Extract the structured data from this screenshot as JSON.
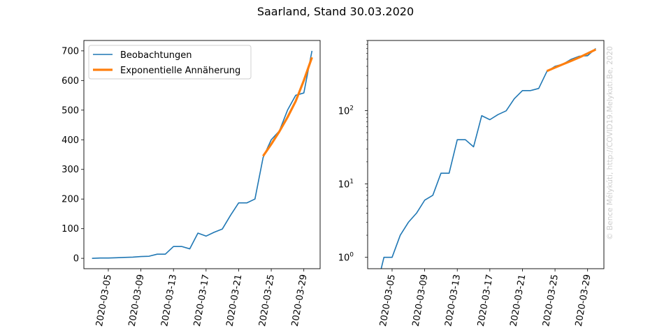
{
  "figure": {
    "title": "Saarland, Stand 30.03.2020",
    "credit": "© Bence Mélykúti, http://COVID19.Melykuti.Be, 2020"
  },
  "colors": {
    "observations": "#1f77b4",
    "fit": "#ff7f0e",
    "credit": "#cccccc"
  },
  "chart_data": [
    {
      "type": "line",
      "yscale": "linear",
      "ylim": [
        -35,
        735
      ],
      "xlim": [
        "2020-03-02",
        "2020-03-31"
      ],
      "yticks": [
        0,
        100,
        200,
        300,
        400,
        500,
        600,
        700
      ],
      "ytick_labels": [
        "0",
        "100",
        "200",
        "300",
        "400",
        "500",
        "600",
        "700"
      ],
      "xticks": [
        "2020-03-05",
        "2020-03-09",
        "2020-03-13",
        "2020-03-17",
        "2020-03-21",
        "2020-03-25",
        "2020-03-29"
      ],
      "legend": {
        "position": "top-left",
        "entries": [
          "Beobachtungen",
          "Exponentielle Annäherung"
        ]
      },
      "series": [
        {
          "name": "Beobachtungen",
          "x": [
            "2020-03-03",
            "2020-03-04",
            "2020-03-05",
            "2020-03-06",
            "2020-03-07",
            "2020-03-08",
            "2020-03-09",
            "2020-03-10",
            "2020-03-11",
            "2020-03-12",
            "2020-03-13",
            "2020-03-14",
            "2020-03-15",
            "2020-03-16",
            "2020-03-17",
            "2020-03-18",
            "2020-03-19",
            "2020-03-20",
            "2020-03-21",
            "2020-03-22",
            "2020-03-23",
            "2020-03-24",
            "2020-03-25",
            "2020-03-26",
            "2020-03-27",
            "2020-03-28",
            "2020-03-29",
            "2020-03-30"
          ],
          "y": [
            0,
            1,
            1,
            2,
            3,
            4,
            6,
            7,
            14,
            14,
            40,
            40,
            32,
            85,
            75,
            88,
            99,
            145,
            187,
            187,
            200,
            340,
            400,
            430,
            500,
            550,
            558,
            700
          ]
        },
        {
          "name": "Exponentielle Annäherung",
          "x": [
            "2020-03-24",
            "2020-03-25",
            "2020-03-26",
            "2020-03-27",
            "2020-03-28",
            "2020-03-29",
            "2020-03-30"
          ],
          "y": [
            345,
            385,
            428,
            476,
            530,
            600,
            678
          ]
        }
      ]
    },
    {
      "type": "line",
      "yscale": "log",
      "ylim": [
        0.7,
        900
      ],
      "xlim": [
        "2020-03-02",
        "2020-03-31"
      ],
      "yticks": [
        1,
        10,
        100
      ],
      "ytick_labels": [
        "10^0",
        "10^1",
        "10^2"
      ],
      "xticks": [
        "2020-03-05",
        "2020-03-09",
        "2020-03-13",
        "2020-03-17",
        "2020-03-21",
        "2020-03-25",
        "2020-03-29"
      ],
      "series": [
        {
          "name": "Beobachtungen",
          "x": [
            "2020-03-03",
            "2020-03-04",
            "2020-03-05",
            "2020-03-06",
            "2020-03-07",
            "2020-03-08",
            "2020-03-09",
            "2020-03-10",
            "2020-03-11",
            "2020-03-12",
            "2020-03-13",
            "2020-03-14",
            "2020-03-15",
            "2020-03-16",
            "2020-03-17",
            "2020-03-18",
            "2020-03-19",
            "2020-03-20",
            "2020-03-21",
            "2020-03-22",
            "2020-03-23",
            "2020-03-24",
            "2020-03-25",
            "2020-03-26",
            "2020-03-27",
            "2020-03-28",
            "2020-03-29",
            "2020-03-30"
          ],
          "y": [
            0,
            1,
            1,
            2,
            3,
            4,
            6,
            7,
            14,
            14,
            40,
            40,
            32,
            85,
            75,
            88,
            99,
            145,
            187,
            187,
            200,
            340,
            400,
            430,
            500,
            550,
            558,
            700
          ]
        },
        {
          "name": "Exponentielle Annäherung",
          "x": [
            "2020-03-24",
            "2020-03-25",
            "2020-03-26",
            "2020-03-27",
            "2020-03-28",
            "2020-03-29",
            "2020-03-30"
          ],
          "y": [
            345,
            385,
            428,
            476,
            530,
            600,
            678
          ]
        }
      ]
    }
  ]
}
